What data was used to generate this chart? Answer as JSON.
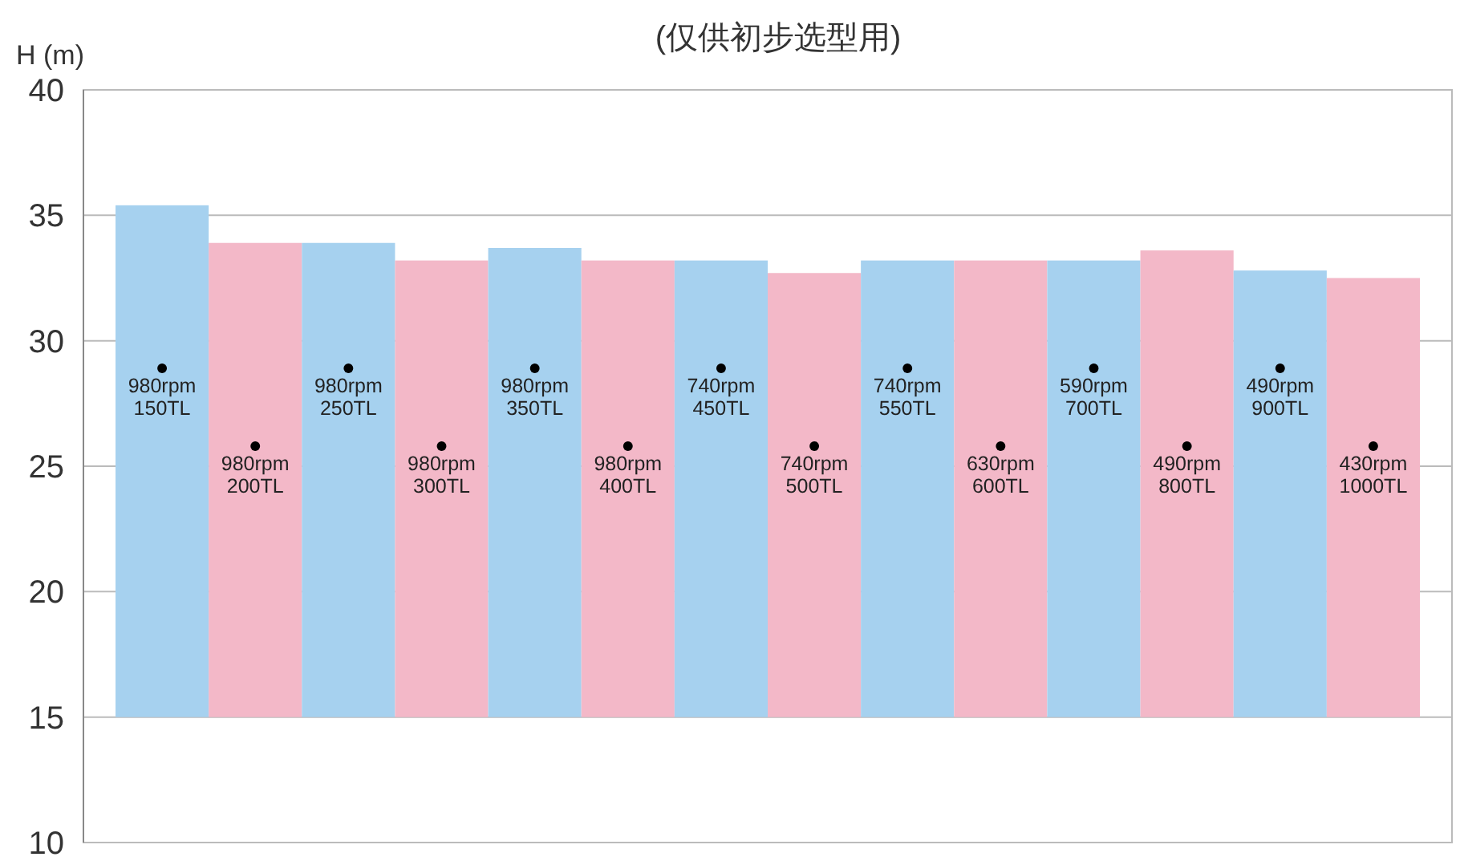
{
  "chart_data": {
    "type": "bar",
    "title": "(仅供初步选型用)",
    "ylabel": "H (m)",
    "categories": [
      null,
      null,
      null,
      null,
      null,
      null,
      null,
      null,
      null,
      null,
      null,
      null,
      null,
      null
    ],
    "series": [
      {
        "base": [
          15,
          15,
          15,
          15,
          15,
          15,
          15,
          15,
          15,
          15,
          15,
          15,
          15,
          15
        ],
        "colors": [
          "#a6d1ef",
          "#f3b8c8",
          "#a6d1ef",
          "#f3b8c8",
          "#a6d1ef",
          "#f3b8c8",
          "#a6d1ef",
          "#f3b8c8",
          "#a6d1ef",
          "#f3b8c8",
          "#a6d1ef",
          "#f3b8c8",
          "#a6d1ef",
          "#f3b8c8"
        ],
        "values": [
          20.4,
          18.9,
          18.9,
          18.2,
          18.7,
          18.2,
          18.2,
          17.7,
          18.2,
          18.2,
          18.2,
          18.6,
          17.8,
          17.5
        ]
      },
      {
        "type": "scatter",
        "color": "#000000",
        "values": [
          28.9,
          25.8,
          28.9,
          25.8,
          28.9,
          25.8,
          28.9,
          25.8,
          28.9,
          25.8,
          28.9,
          25.8,
          28.9,
          25.8
        ]
      }
    ],
    "annotations": [
      {
        "text": "980rpm\n150TL",
        "y": 28.9
      },
      {
        "text": "980rpm\n200TL",
        "y": 25.8
      },
      {
        "text": "980rpm\n250TL",
        "y": 28.9
      },
      {
        "text": "980rpm\n300TL",
        "y": 25.8
      },
      {
        "text": "980rpm\n350TL",
        "y": 28.9
      },
      {
        "text": "980rpm\n400TL",
        "y": 25.8
      },
      {
        "text": "740rpm\n450TL",
        "y": 28.9
      },
      {
        "text": "740rpm\n500TL",
        "y": 25.8
      },
      {
        "text": "740rpm\n550TL",
        "y": 28.9
      },
      {
        "text": "630rpm\n600TL",
        "y": 25.8
      },
      {
        "text": "590rpm\n700TL",
        "y": 28.9
      },
      {
        "text": "490rpm\n800TL",
        "y": 25.8
      },
      {
        "text": "490rpm\n900TL",
        "y": 28.9
      },
      {
        "text": "430rpm\n1000TL",
        "y": 25.8
      }
    ],
    "ylim": [
      10,
      40
    ],
    "yticks": [
      10,
      15,
      20,
      25,
      30,
      35,
      40
    ],
    "grid": "y",
    "tick_labels": "y",
    "marker": "circle"
  }
}
